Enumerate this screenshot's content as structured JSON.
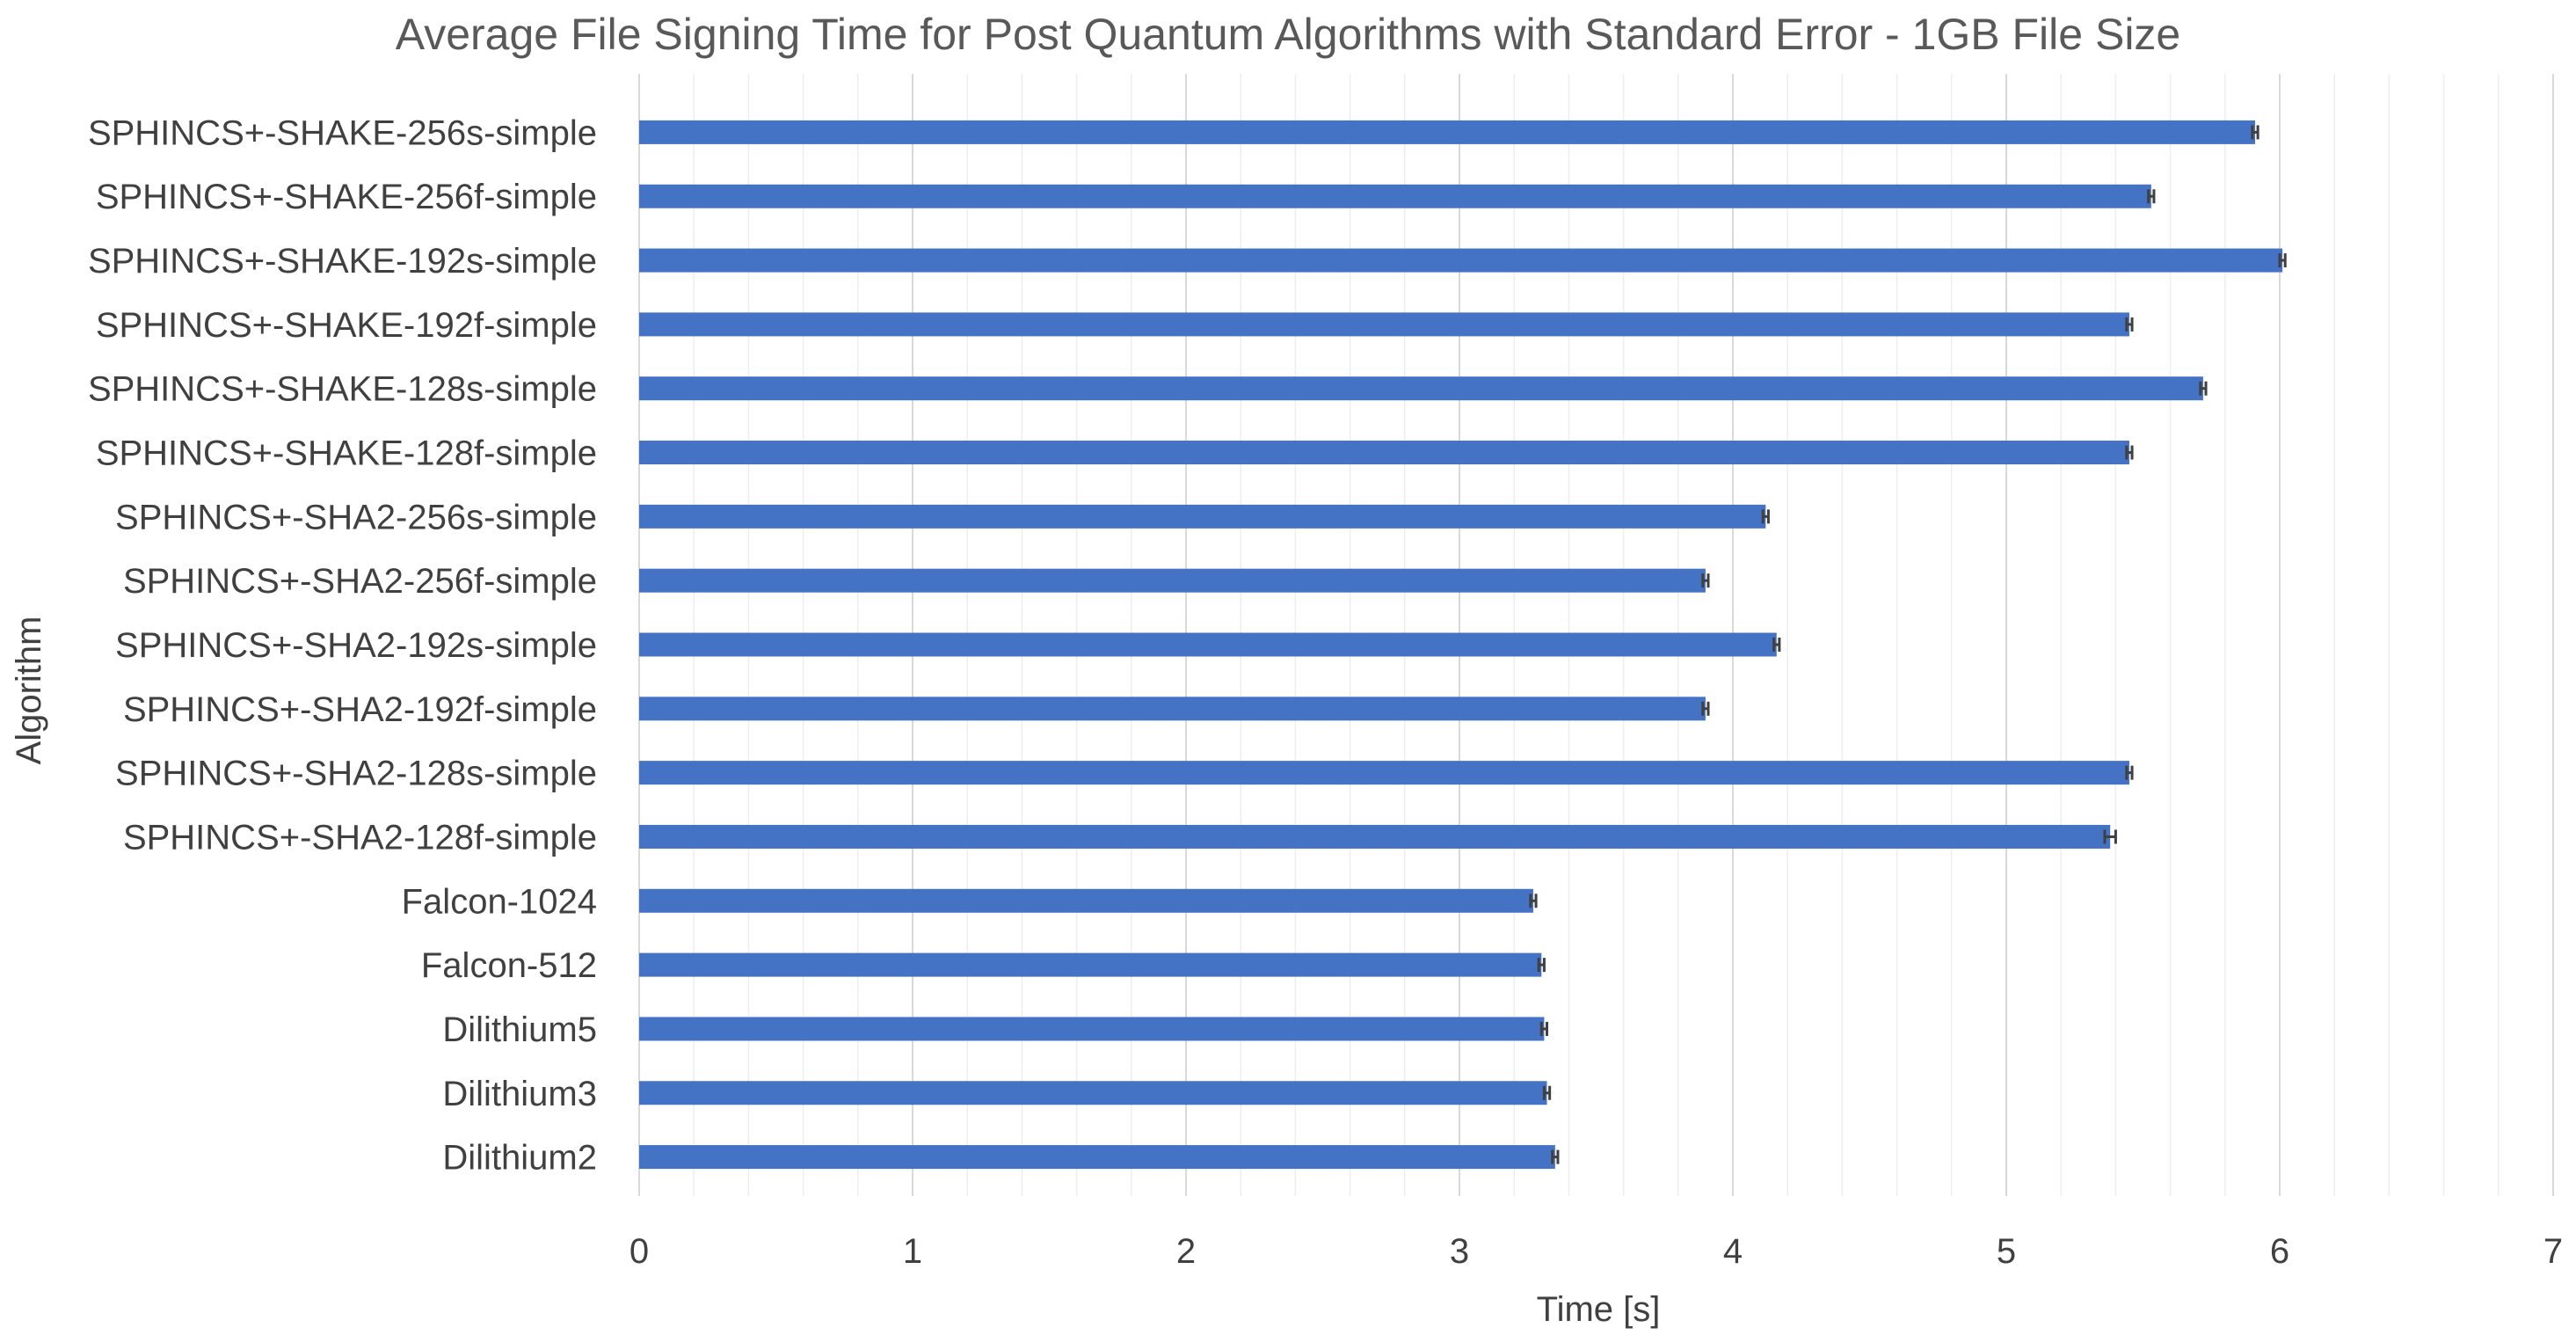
{
  "chart_data": {
    "type": "bar",
    "orientation": "horizontal",
    "title": "Average File Signing Time for Post Quantum Algorithms with Standard Error - 1GB File Size",
    "xlabel": "Time [s]",
    "ylabel": "Algorithm",
    "xlim": [
      0,
      7
    ],
    "xticks": [
      "0",
      "1",
      "2",
      "3",
      "4",
      "5",
      "6",
      "7"
    ],
    "grid": "vertical major and minor gridlines",
    "legend": "none",
    "bar_color": "#4472C4",
    "error_bar_color": "#404040",
    "categories": [
      "SPHINCS+-SHAKE-256s-simple",
      "SPHINCS+-SHAKE-256f-simple",
      "SPHINCS+-SHAKE-192s-simple",
      "SPHINCS+-SHAKE-192f-simple",
      "SPHINCS+-SHAKE-128s-simple",
      "SPHINCS+-SHAKE-128f-simple",
      "SPHINCS+-SHA2-256s-simple",
      "SPHINCS+-SHA2-256f-simple",
      "SPHINCS+-SHA2-192s-simple",
      "SPHINCS+-SHA2-192f-simple",
      "SPHINCS+-SHA2-128s-simple",
      "SPHINCS+-SHA2-128f-simple",
      "Falcon-1024",
      "Falcon-512",
      "Dilithium5",
      "Dilithium3",
      "Dilithium2"
    ],
    "values": [
      5.91,
      5.53,
      6.01,
      5.45,
      5.72,
      5.45,
      4.12,
      3.9,
      4.16,
      3.9,
      5.45,
      5.38,
      3.27,
      3.3,
      3.31,
      3.32,
      3.35
    ],
    "errors": [
      0.01,
      0.01,
      0.01,
      0.01,
      0.01,
      0.01,
      0.01,
      0.01,
      0.01,
      0.01,
      0.01,
      0.02,
      0.01,
      0.01,
      0.01,
      0.01,
      0.01
    ]
  }
}
